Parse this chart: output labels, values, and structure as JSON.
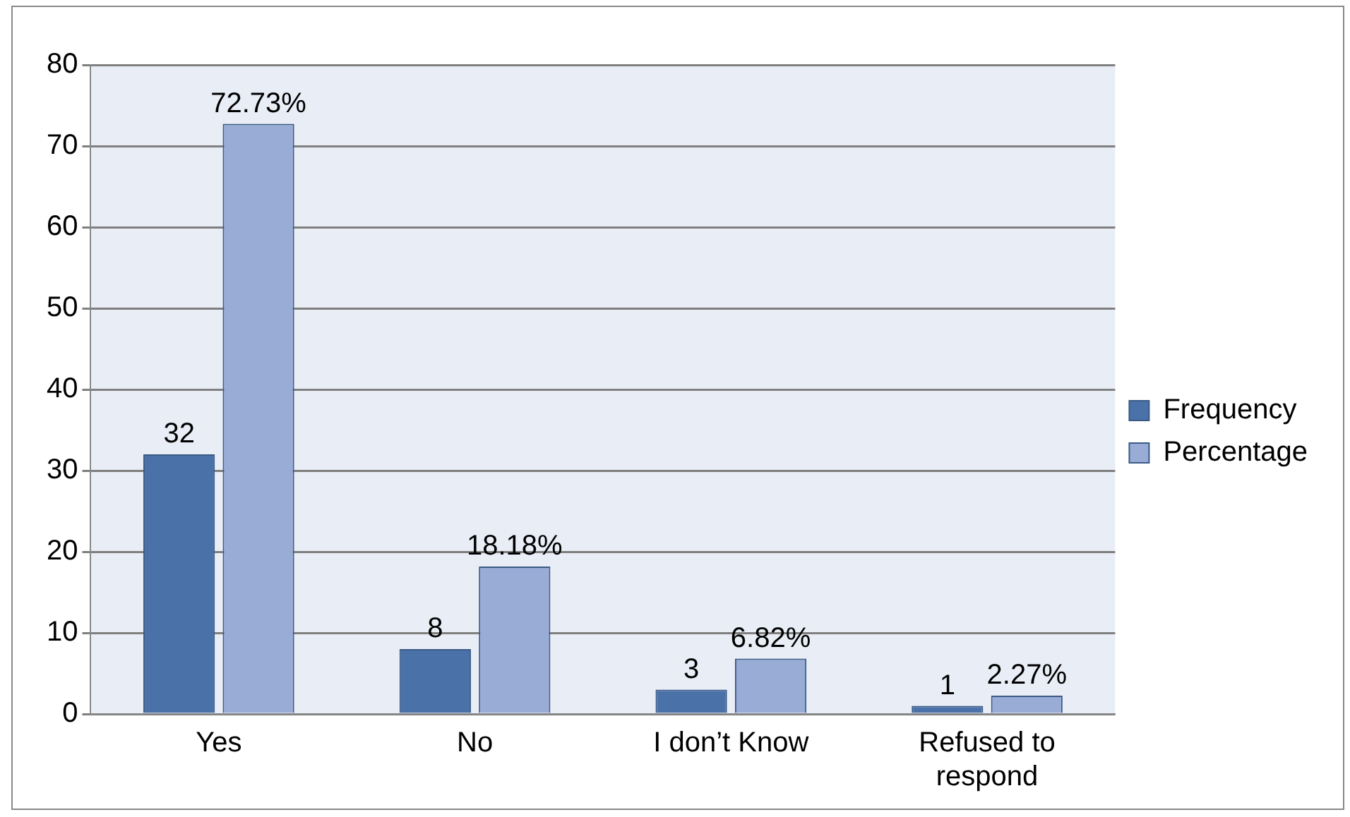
{
  "chart_data": {
    "type": "bar",
    "categories": [
      "Yes",
      "No",
      "I don’t Know",
      "Refused to respond"
    ],
    "series": [
      {
        "name": "Frequency",
        "color": "#4a72a8",
        "values": [
          32,
          8,
          3,
          1
        ],
        "value_labels": [
          "32",
          "8",
          "3",
          "1"
        ]
      },
      {
        "name": "Percentage",
        "color": "#98acd6",
        "values": [
          72.73,
          18.18,
          6.82,
          2.27
        ],
        "value_labels": [
          "72.73%",
          "18.18%",
          "6.82%",
          "2.27%"
        ]
      }
    ],
    "ylim": [
      0,
      80
    ],
    "yticks": [
      0,
      10,
      20,
      30,
      40,
      50,
      60,
      70,
      80
    ],
    "grid": "y",
    "legend": "right"
  }
}
